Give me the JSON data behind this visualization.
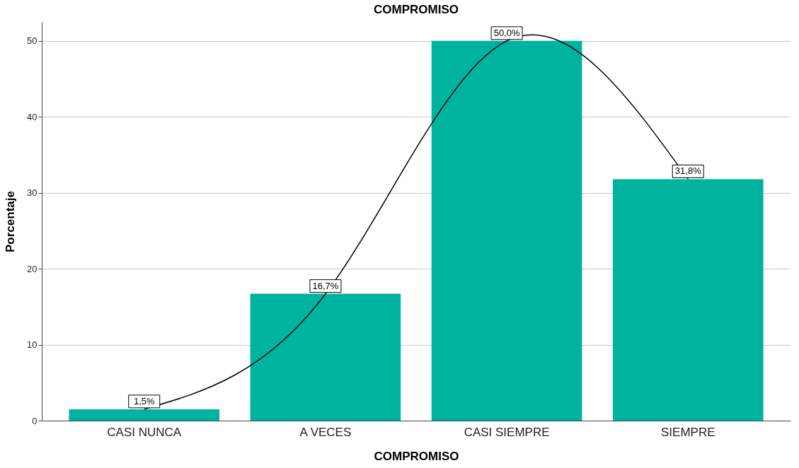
{
  "chart_data": {
    "type": "bar",
    "title": "COMPROMISO",
    "xlabel": "COMPROMISO",
    "ylabel": "Porcentaje",
    "categories": [
      "CASI NUNCA",
      "A VECES",
      "CASI SIEMPRE",
      "SIEMPRE"
    ],
    "series": [
      {
        "color": "#00b2a0",
        "values": [
          1.5,
          16.7,
          50.0,
          31.8
        ],
        "value_labels": [
          "1,5%",
          "16,7%",
          "50,0%",
          "31,8%"
        ]
      },
      {
        "type": "line",
        "color": "#000000",
        "values": [
          1.5,
          16.7,
          50.0,
          31.8
        ]
      }
    ],
    "ylim": [
      0,
      52.5
    ],
    "yticks": [
      0,
      10,
      20,
      30,
      40,
      50
    ],
    "grid": "y",
    "marker": "none"
  }
}
